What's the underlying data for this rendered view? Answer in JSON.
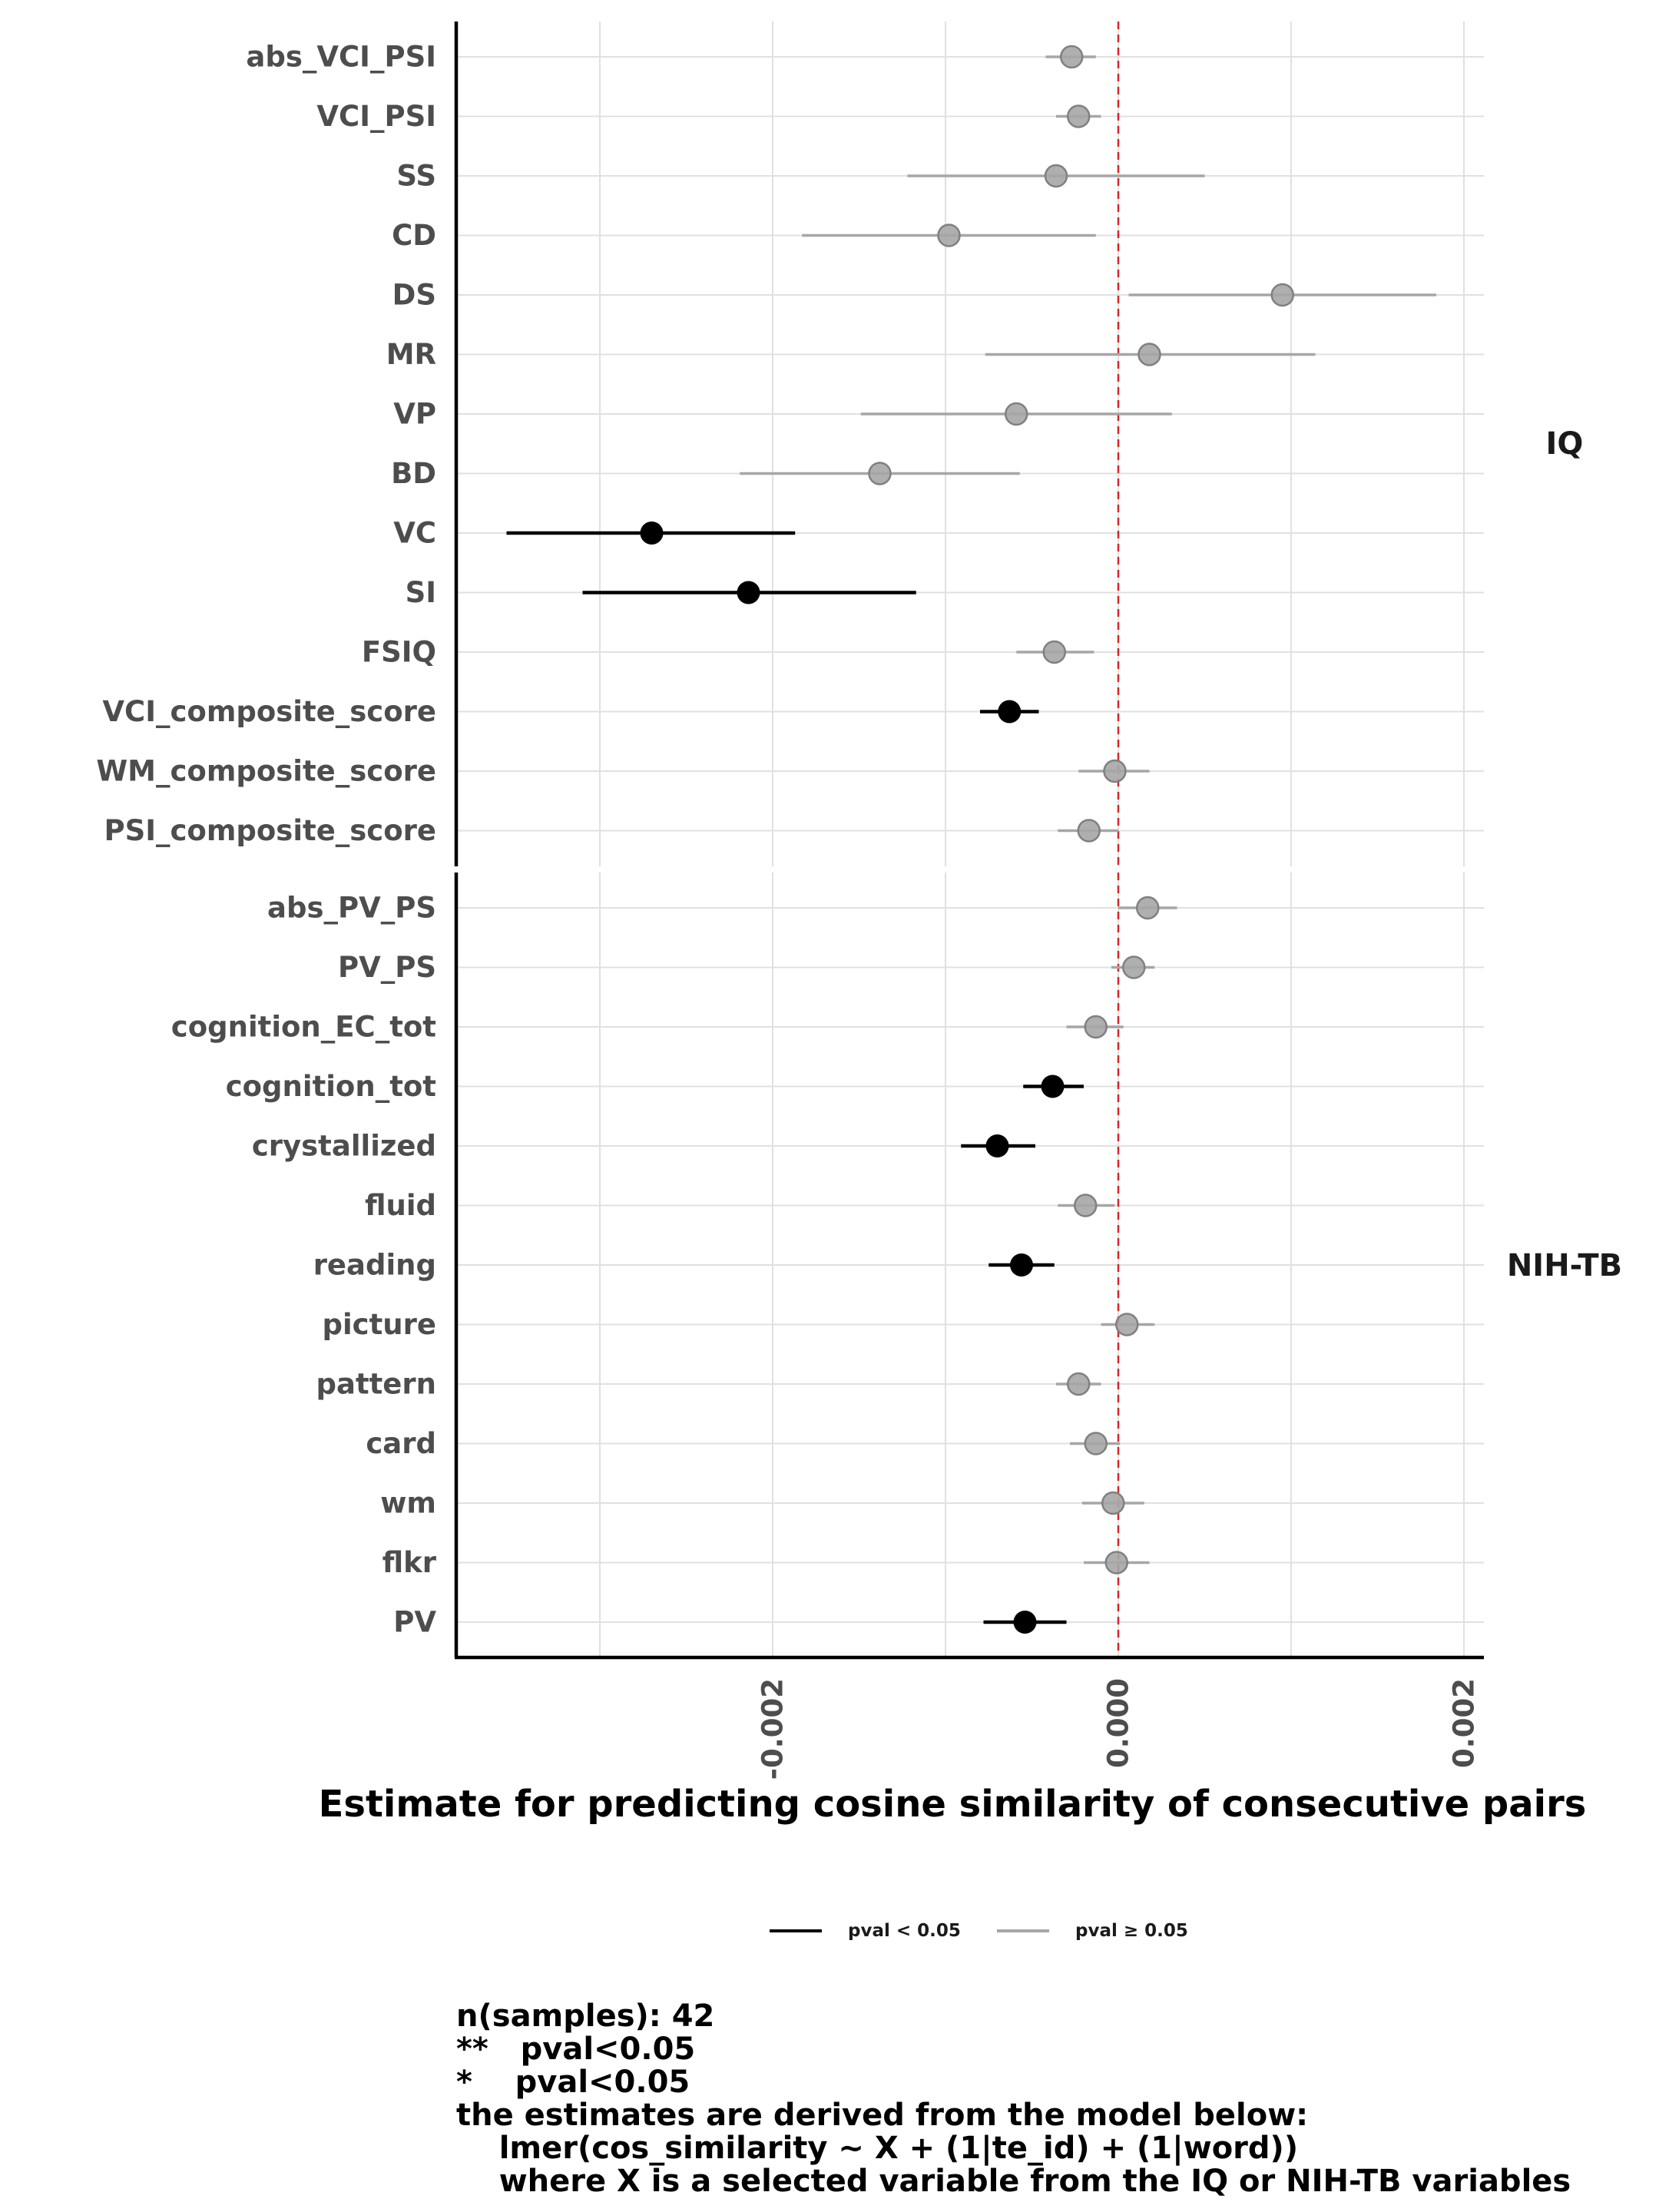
{
  "chart_data": {
    "type": "forest",
    "xlabel": "Estimate for predicting cosine similarity of consecutive pairs",
    "xlim": [
      -0.0038,
      0.0021
    ],
    "xticks": [
      -0.002,
      0.0,
      0.002
    ],
    "xtick_labels": [
      "-0.002",
      "0.000",
      "0.002"
    ],
    "reference_line": 0.0,
    "grid": true,
    "panels": [
      {
        "name": "IQ",
        "rows": [
          {
            "label": "abs_VCI_PSI",
            "estimate": -0.00027,
            "lower": -0.00042,
            "upper": -0.00013,
            "significant": false
          },
          {
            "label": "VCI_PSI",
            "estimate": -0.00023,
            "lower": -0.00036,
            "upper": -0.0001,
            "significant": false
          },
          {
            "label": "SS",
            "estimate": -0.00036,
            "lower": -0.00122,
            "upper": 0.0005,
            "significant": false
          },
          {
            "label": "CD",
            "estimate": -0.00098,
            "lower": -0.00183,
            "upper": -0.00013,
            "significant": false
          },
          {
            "label": "DS",
            "estimate": 0.00095,
            "lower": 6e-05,
            "upper": 0.00184,
            "significant": false
          },
          {
            "label": "MR",
            "estimate": 0.00018,
            "lower": -0.00077,
            "upper": 0.00114,
            "significant": false
          },
          {
            "label": "VP",
            "estimate": -0.00059,
            "lower": -0.00149,
            "upper": 0.00031,
            "significant": false
          },
          {
            "label": "BD",
            "estimate": -0.00138,
            "lower": -0.00219,
            "upper": -0.00057,
            "significant": false
          },
          {
            "label": "VC",
            "estimate": -0.0027,
            "lower": -0.00354,
            "upper": -0.00187,
            "significant": true
          },
          {
            "label": "SI",
            "estimate": -0.00214,
            "lower": -0.0031,
            "upper": -0.00117,
            "significant": true
          },
          {
            "label": "FSIQ",
            "estimate": -0.00037,
            "lower": -0.00059,
            "upper": -0.00014,
            "significant": false
          },
          {
            "label": "VCI_composite_score",
            "estimate": -0.00063,
            "lower": -0.0008,
            "upper": -0.00046,
            "significant": true
          },
          {
            "label": "WM_composite_score",
            "estimate": -2e-05,
            "lower": -0.00023,
            "upper": 0.00018,
            "significant": false
          },
          {
            "label": "PSI_composite_score",
            "estimate": -0.00017,
            "lower": -0.00035,
            "upper": 0.0,
            "significant": false
          }
        ]
      },
      {
        "name": "NIH-TB",
        "rows": [
          {
            "label": "abs_PV_PS",
            "estimate": 0.00017,
            "lower": 0.0,
            "upper": 0.00034,
            "significant": false
          },
          {
            "label": "PV_PS",
            "estimate": 9e-05,
            "lower": -4e-05,
            "upper": 0.00021,
            "significant": false
          },
          {
            "label": "cognition_EC_tot",
            "estimate": -0.00013,
            "lower": -0.0003,
            "upper": 3e-05,
            "significant": false
          },
          {
            "label": "cognition_tot",
            "estimate": -0.00038,
            "lower": -0.00055,
            "upper": -0.0002,
            "significant": true
          },
          {
            "label": "crystallized",
            "estimate": -0.0007,
            "lower": -0.00091,
            "upper": -0.00048,
            "significant": true
          },
          {
            "label": "fluid",
            "estimate": -0.00019,
            "lower": -0.00035,
            "upper": -2e-05,
            "significant": false
          },
          {
            "label": "reading",
            "estimate": -0.00056,
            "lower": -0.00075,
            "upper": -0.00037,
            "significant": true
          },
          {
            "label": "picture",
            "estimate": 5e-05,
            "lower": -0.0001,
            "upper": 0.00021,
            "significant": false
          },
          {
            "label": "pattern",
            "estimate": -0.00023,
            "lower": -0.00036,
            "upper": -0.0001,
            "significant": false
          },
          {
            "label": "card",
            "estimate": -0.00013,
            "lower": -0.00028,
            "upper": 1e-05,
            "significant": false
          },
          {
            "label": "wm",
            "estimate": -3e-05,
            "lower": -0.00021,
            "upper": 0.00015,
            "significant": false
          },
          {
            "label": "flkr",
            "estimate": -1e-05,
            "lower": -0.0002,
            "upper": 0.00018,
            "significant": false
          },
          {
            "label": "PV",
            "estimate": -0.00054,
            "lower": -0.00078,
            "upper": -0.0003,
            "significant": true
          }
        ]
      }
    ],
    "legend": {
      "placement": "bottom",
      "entries": [
        {
          "label": "pval < 0.05",
          "color": "#000000"
        },
        {
          "label": "pval ≥ 0.05",
          "color": "#a6a6a6"
        }
      ]
    }
  },
  "caption": {
    "lines": [
      "n(samples): 42",
      "**   pval<0.05",
      "*    pval<0.05",
      "the estimates are derived from the model below:",
      "    lmer(cos_similarity ~ X + (1|te_id) + (1|word))",
      "    where X is a selected variable from the IQ or NIH-TB variables"
    ]
  },
  "colors": {
    "significant": "#000000",
    "not_significant": "#a6a6a6",
    "reference_line": "#d62728",
    "grid": "#e0e0e0",
    "axis": "#000000"
  }
}
